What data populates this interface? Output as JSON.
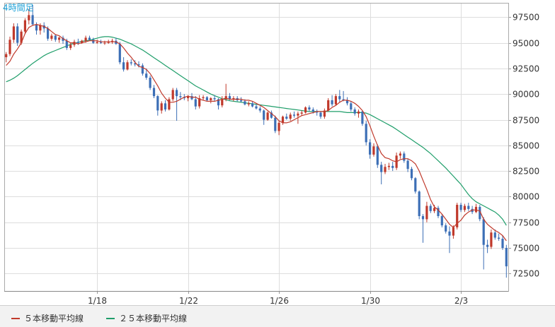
{
  "period_label": "4時間足",
  "legend": [
    {
      "label": "５本移動平均線",
      "color": "#c0392b"
    },
    {
      "label": "２５本移動平均線",
      "color": "#1f9e6a"
    }
  ],
  "colors": {
    "up": "#c0392b",
    "down": "#3d6fb6",
    "ma5": "#c0392b",
    "ma25": "#1f9e6a",
    "grid": "#dddddd",
    "axis": "#999999"
  },
  "chart_data": {
    "type": "candlestick",
    "x_tick_labels": [
      "1/18",
      "1/22",
      "1/26",
      "1/30",
      "2/3"
    ],
    "x_tick_index": [
      24,
      48,
      72,
      96,
      120
    ],
    "y_tick_labels": [
      "97500",
      "95000",
      "92500",
      "90000",
      "87500",
      "85000",
      "82500",
      "80000",
      "77500",
      "75000",
      "72500"
    ],
    "y_ticks": [
      97500,
      95000,
      92500,
      90000,
      87500,
      85000,
      82500,
      80000,
      77500,
      75000,
      72500
    ],
    "ylim": [
      70800,
      98900
    ],
    "candles_count": 133,
    "candles": [
      [
        93600,
        94100,
        93100,
        93900
      ],
      [
        93900,
        95600,
        93700,
        95300
      ],
      [
        95300,
        96900,
        95000,
        96600
      ],
      [
        96600,
        96900,
        94700,
        95000
      ],
      [
        95000,
        96300,
        94800,
        96100
      ],
      [
        96100,
        97400,
        95900,
        97200
      ],
      [
        97200,
        98300,
        96800,
        97700
      ],
      [
        97700,
        98700,
        96700,
        96800
      ],
      [
        96800,
        97000,
        95800,
        96200
      ],
      [
        96200,
        96900,
        95800,
        96700
      ],
      [
        96700,
        97000,
        96000,
        96400
      ],
      [
        96400,
        96600,
        95200,
        95400
      ],
      [
        95400,
        95900,
        95200,
        95700
      ],
      [
        95700,
        95800,
        95100,
        95300
      ],
      [
        95300,
        95600,
        95000,
        95500
      ],
      [
        95500,
        95700,
        94900,
        95200
      ],
      [
        95200,
        95400,
        94300,
        94500
      ],
      [
        94500,
        95000,
        94300,
        94800
      ],
      [
        94800,
        95300,
        94600,
        95100
      ],
      [
        95100,
        95400,
        94800,
        95000
      ],
      [
        95000,
        95300,
        94900,
        95200
      ],
      [
        95200,
        95700,
        95000,
        95500
      ],
      [
        95500,
        95700,
        95200,
        95300
      ],
      [
        95300,
        95500,
        94900,
        95000
      ],
      [
        95000,
        95300,
        94900,
        95100
      ],
      [
        95100,
        95300,
        94900,
        95000
      ],
      [
        95000,
        95200,
        94800,
        95000
      ],
      [
        95000,
        95300,
        94900,
        95100
      ],
      [
        95100,
        95400,
        94900,
        95200
      ],
      [
        95200,
        95500,
        94800,
        94900
      ],
      [
        94900,
        95100,
        92900,
        93100
      ],
      [
        93100,
        93600,
        92200,
        92400
      ],
      [
        92400,
        93300,
        92300,
        93100
      ],
      [
        93100,
        93400,
        92800,
        93000
      ],
      [
        93000,
        93300,
        92700,
        92900
      ],
      [
        92900,
        93200,
        92600,
        92800
      ],
      [
        92800,
        93000,
        91800,
        92000
      ],
      [
        92000,
        92500,
        91400,
        91600
      ],
      [
        91600,
        91800,
        90400,
        90600
      ],
      [
        90600,
        90900,
        89600,
        89800
      ],
      [
        89800,
        89900,
        87900,
        88400
      ],
      [
        88400,
        89300,
        88100,
        89100
      ],
      [
        89100,
        89400,
        88300,
        88500
      ],
      [
        88500,
        89700,
        88400,
        89500
      ],
      [
        89500,
        90600,
        89300,
        90400
      ],
      [
        90400,
        90600,
        87400,
        89800
      ],
      [
        89800,
        90200,
        89400,
        89700
      ],
      [
        89700,
        90000,
        89400,
        89600
      ],
      [
        89600,
        89900,
        89300,
        89800
      ],
      [
        89800,
        90100,
        89400,
        89500
      ],
      [
        89500,
        89800,
        88500,
        88800
      ],
      [
        88800,
        89900,
        88600,
        89600
      ],
      [
        89600,
        89900,
        89400,
        89700
      ],
      [
        89700,
        89800,
        89300,
        89400
      ],
      [
        89400,
        89700,
        89100,
        89600
      ],
      [
        89600,
        89900,
        89300,
        89500
      ],
      [
        89500,
        89600,
        88500,
        88900
      ],
      [
        88900,
        89800,
        88700,
        89500
      ],
      [
        89500,
        91000,
        89300,
        89800
      ],
      [
        89800,
        90100,
        89400,
        89500
      ],
      [
        89500,
        89800,
        89300,
        89600
      ],
      [
        89600,
        89800,
        89300,
        89400
      ],
      [
        89400,
        89700,
        89200,
        89300
      ],
      [
        89300,
        89500,
        88900,
        89000
      ],
      [
        89000,
        89300,
        88800,
        89100
      ],
      [
        89100,
        89300,
        88700,
        88800
      ],
      [
        88800,
        89000,
        88500,
        88600
      ],
      [
        88600,
        88800,
        88200,
        88400
      ],
      [
        88400,
        88500,
        87000,
        87500
      ],
      [
        87500,
        88300,
        87400,
        88200
      ],
      [
        88200,
        88400,
        87600,
        87700
      ],
      [
        87700,
        87900,
        86200,
        86400
      ],
      [
        86400,
        87400,
        86000,
        87200
      ],
      [
        87200,
        87900,
        87000,
        87800
      ],
      [
        87800,
        88100,
        87500,
        87600
      ],
      [
        87600,
        88200,
        87400,
        88000
      ],
      [
        88000,
        88300,
        87700,
        87900
      ],
      [
        87900,
        88300,
        87100,
        88100
      ],
      [
        88100,
        88400,
        87900,
        88200
      ],
      [
        88200,
        88800,
        88100,
        88700
      ],
      [
        88700,
        88900,
        88300,
        88500
      ],
      [
        88500,
        88700,
        88100,
        88300
      ],
      [
        88300,
        88500,
        87900,
        88200
      ],
      [
        88200,
        88300,
        87600,
        87800
      ],
      [
        87800,
        88600,
        87600,
        88400
      ],
      [
        88400,
        89600,
        88300,
        89400
      ],
      [
        89400,
        89900,
        88800,
        89000
      ],
      [
        89000,
        90000,
        88900,
        89800
      ],
      [
        89800,
        90400,
        89200,
        89500
      ],
      [
        89500,
        90300,
        89300,
        89400
      ],
      [
        89400,
        89700,
        88900,
        89100
      ],
      [
        89100,
        89300,
        88300,
        88500
      ],
      [
        88500,
        88700,
        87900,
        88100
      ],
      [
        88100,
        88500,
        87700,
        88300
      ],
      [
        88300,
        88400,
        86900,
        87100
      ],
      [
        87100,
        87400,
        85000,
        85300
      ],
      [
        85300,
        85600,
        83700,
        84100
      ],
      [
        84100,
        85200,
        83900,
        84900
      ],
      [
        84900,
        85100,
        82800,
        83100
      ],
      [
        83100,
        83400,
        81200,
        82400
      ],
      [
        82400,
        83200,
        82200,
        82900
      ],
      [
        82900,
        83300,
        82600,
        83000
      ],
      [
        83000,
        83400,
        82500,
        82800
      ],
      [
        82800,
        84300,
        82600,
        84000
      ],
      [
        84000,
        84400,
        83700,
        84200
      ],
      [
        84200,
        84400,
        83300,
        83500
      ],
      [
        83500,
        83700,
        82400,
        82700
      ],
      [
        82700,
        82900,
        81600,
        81800
      ],
      [
        81800,
        81900,
        80300,
        80500
      ],
      [
        80500,
        80600,
        77800,
        78100
      ],
      [
        78100,
        78300,
        75500,
        77800
      ],
      [
        77800,
        79500,
        77500,
        79100
      ],
      [
        79100,
        79300,
        78400,
        78600
      ],
      [
        78600,
        79200,
        78400,
        78900
      ],
      [
        78900,
        79100,
        77900,
        78100
      ],
      [
        78100,
        78300,
        77000,
        77200
      ],
      [
        77200,
        77400,
        76400,
        76600
      ],
      [
        76600,
        77100,
        74500,
        76200
      ],
      [
        76200,
        77200,
        75900,
        77000
      ],
      [
        77000,
        79400,
        76800,
        79200
      ],
      [
        79200,
        79400,
        78500,
        78700
      ],
      [
        78700,
        79300,
        78500,
        79100
      ],
      [
        79100,
        79400,
        78600,
        78800
      ],
      [
        78800,
        79100,
        78300,
        78500
      ],
      [
        78500,
        79300,
        78400,
        79000
      ],
      [
        79000,
        79200,
        77600,
        77800
      ],
      [
        77800,
        78000,
        72900,
        75300
      ],
      [
        75300,
        75800,
        74500,
        75100
      ],
      [
        75100,
        76800,
        74900,
        76500
      ],
      [
        76500,
        76800,
        75800,
        76000
      ],
      [
        76000,
        76400,
        75700,
        75900
      ],
      [
        75900,
        76200,
        74800,
        75000
      ],
      [
        75000,
        75300,
        72100,
        73200
      ]
    ],
    "ma5": [
      92800,
      93200,
      93900,
      94400,
      95000,
      95900,
      96500,
      96700,
      96800,
      96700,
      96600,
      96400,
      96100,
      95800,
      95700,
      95400,
      95200,
      95000,
      95000,
      94900,
      95000,
      95100,
      95200,
      95200,
      95200,
      95100,
      95100,
      95100,
      95100,
      95100,
      94900,
      94500,
      94000,
      93600,
      93100,
      92700,
      92600,
      92400,
      92000,
      91400,
      90800,
      90100,
      89600,
      89200,
      89200,
      89300,
      89500,
      89700,
      89800,
      89700,
      89700,
      89500,
      89400,
      89300,
      89300,
      89300,
      89400,
      89500,
      89600,
      89500,
      89500,
      89500,
      89500,
      89400,
      89400,
      89300,
      89100,
      88900,
      88700,
      88400,
      88100,
      87800,
      87400,
      87200,
      87200,
      87300,
      87500,
      87700,
      87900,
      88000,
      88100,
      88200,
      88300,
      88300,
      88300,
      88400,
      88700,
      88900,
      89200,
      89400,
      89400,
      89300,
      89100,
      88800,
      88400,
      87800,
      86900,
      85900,
      85000,
      84200,
      83800,
      83700,
      83500,
      83400,
      83600,
      83700,
      83700,
      83500,
      83200,
      82500,
      81600,
      80700,
      79700,
      79000,
      78700,
      78300,
      77800,
      77300,
      77000,
      77400,
      77700,
      78200,
      78500,
      78700,
      78700,
      78600,
      77800,
      77300,
      77000,
      76700,
      76500,
      76200,
      75700
    ],
    "ma25": [
      91200,
      91350,
      91550,
      91800,
      92100,
      92400,
      92700,
      93000,
      93250,
      93500,
      93750,
      93950,
      94100,
      94250,
      94400,
      94550,
      94700,
      94850,
      94950,
      95050,
      95150,
      95200,
      95250,
      95350,
      95450,
      95550,
      95600,
      95600,
      95550,
      95450,
      95350,
      95200,
      95050,
      94900,
      94700,
      94500,
      94300,
      94050,
      93800,
      93550,
      93300,
      93050,
      92800,
      92550,
      92300,
      92050,
      91800,
      91550,
      91300,
      91050,
      90800,
      90600,
      90400,
      90200,
      90000,
      89850,
      89700,
      89550,
      89450,
      89350,
      89300,
      89250,
      89200,
      89150,
      89100,
      89050,
      89000,
      88950,
      88900,
      88850,
      88800,
      88750,
      88700,
      88650,
      88600,
      88550,
      88500,
      88450,
      88400,
      88350,
      88300,
      88300,
      88300,
      88300,
      88300,
      88300,
      88300,
      88300,
      88300,
      88250,
      88200,
      88200,
      88200,
      88200,
      88200,
      88150,
      88000,
      87800,
      87600,
      87400,
      87200,
      87000,
      86800,
      86550,
      86300,
      86050,
      85800,
      85550,
      85300,
      85050,
      84800,
      84500,
      84200,
      83850,
      83500,
      83150,
      82800,
      82400,
      82000,
      81600,
      81200,
      80700,
      80200,
      79800,
      79500,
      79300,
      79100,
      78900,
      78700,
      78500,
      78200,
      77800,
      77200
    ]
  }
}
